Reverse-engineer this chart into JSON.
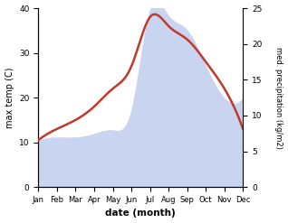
{
  "months": [
    "Jan",
    "Feb",
    "Mar",
    "Apr",
    "May",
    "Jun",
    "Jul",
    "Aug",
    "Sep",
    "Oct",
    "Nov",
    "Dec"
  ],
  "temp_monthly": [
    10.5,
    13.0,
    15.0,
    18.0,
    22.0,
    27.0,
    38.0,
    36.0,
    33.0,
    28.0,
    22.0,
    13.0
  ],
  "precip_monthly": [
    6.5,
    7.0,
    7.0,
    7.5,
    8.0,
    11.0,
    25.0,
    24.0,
    22.0,
    17.0,
    12.5,
    12.5
  ],
  "temp_color": "#c0392b",
  "precip_fill_color": "#c8d4f0",
  "left_ylabel": "max temp (C)",
  "right_ylabel": "med. precipitation (kg/m2)",
  "xlabel": "date (month)",
  "ylim_temp": [
    0,
    40
  ],
  "ylim_precip": [
    0,
    25
  ],
  "background_color": "#ffffff"
}
